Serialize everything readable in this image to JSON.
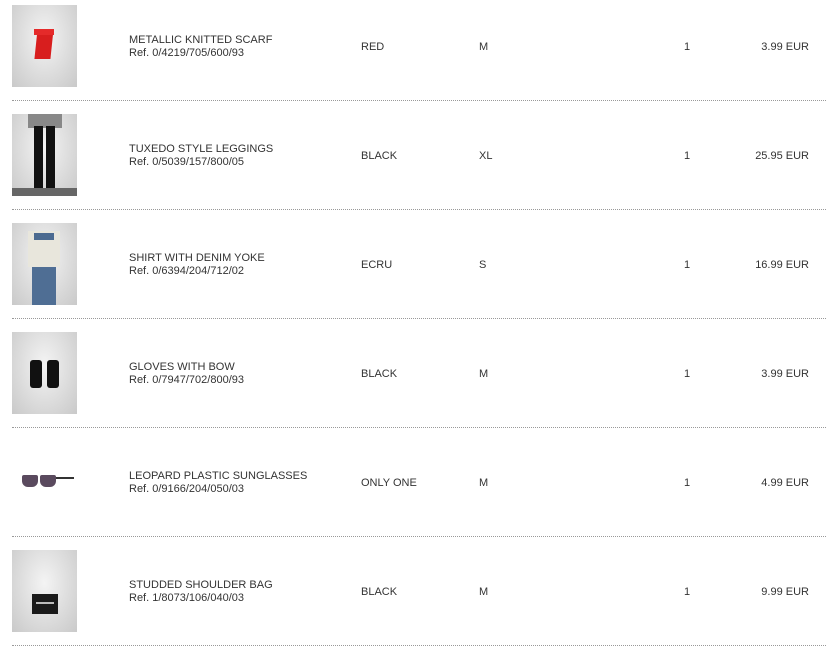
{
  "items": [
    {
      "name": "METALLIC KNITTED SCARF",
      "ref": "Ref. 0/4219/705/600/93",
      "color": "RED",
      "size": "M",
      "qty": "1",
      "price": "3.99 EUR",
      "image": "red-scarf"
    },
    {
      "name": "TUXEDO STYLE LEGGINGS",
      "ref": "Ref. 0/5039/157/800/05",
      "color": "BLACK",
      "size": "XL",
      "qty": "1",
      "price": "25.95 EUR",
      "image": "black-leggings"
    },
    {
      "name": "SHIRT WITH DENIM YOKE",
      "ref": "Ref. 0/6394/204/712/02",
      "color": "ECRU",
      "size": "S",
      "qty": "1",
      "price": "16.99 EUR",
      "image": "denim-shirt"
    },
    {
      "name": "GLOVES WITH BOW",
      "ref": "Ref. 0/7947/702/800/93",
      "color": "BLACK",
      "size": "M",
      "qty": "1",
      "price": "3.99 EUR",
      "image": "black-gloves"
    },
    {
      "name": "LEOPARD PLASTIC SUNGLASSES",
      "ref": "Ref. 0/9166/204/050/03",
      "color": "ONLY ONE",
      "size": "M",
      "qty": "1",
      "price": "4.99 EUR",
      "image": "sunglasses"
    },
    {
      "name": "STUDDED SHOULDER BAG",
      "ref": "Ref. 1/8073/106/040/03",
      "color": "BLACK",
      "size": "M",
      "qty": "1",
      "price": "9.99 EUR",
      "image": "shoulder-bag"
    }
  ]
}
